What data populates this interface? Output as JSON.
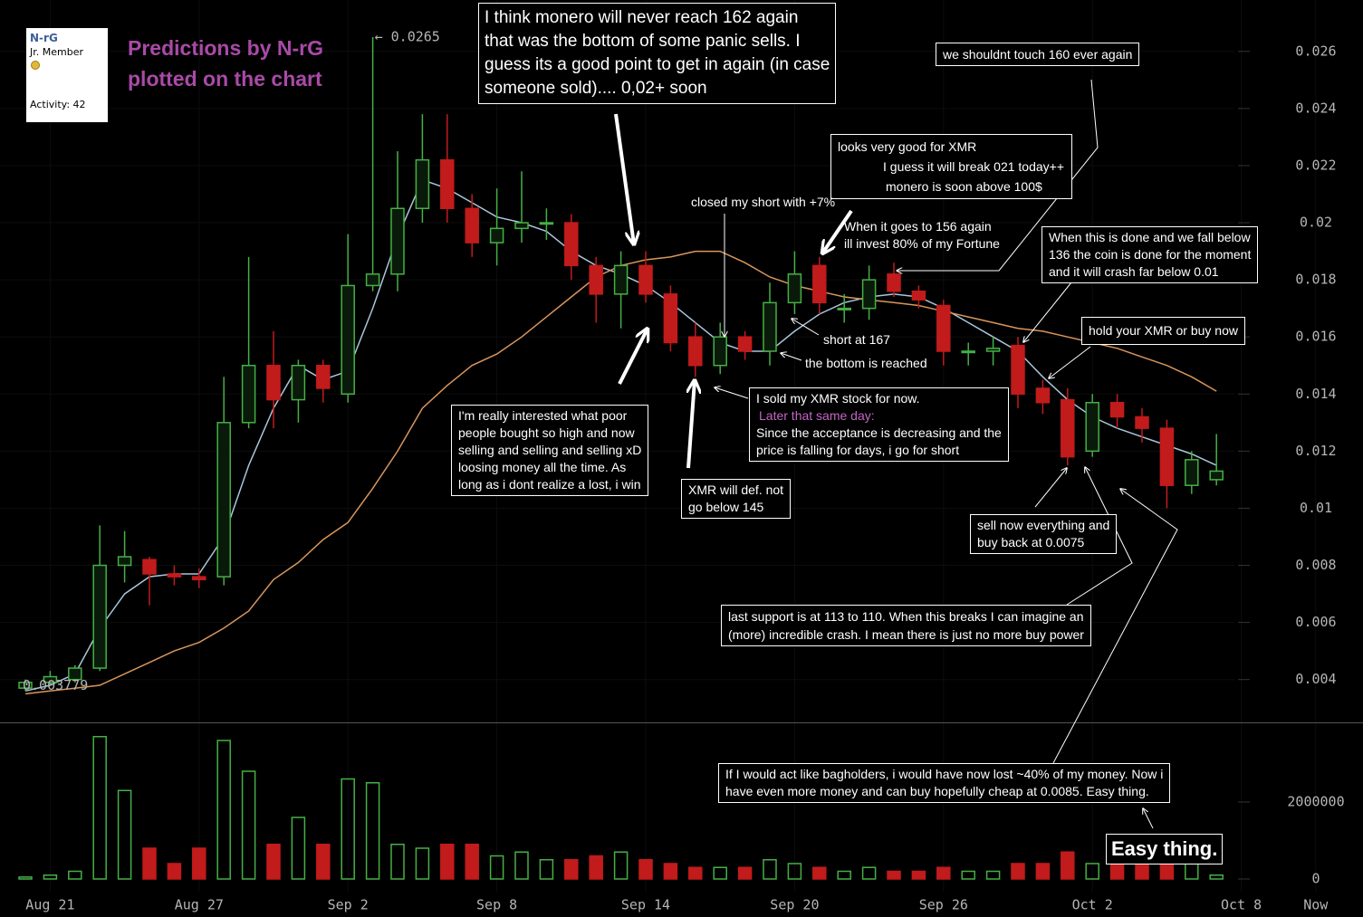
{
  "header": {
    "username": "N-rG",
    "rank": "Jr. Member",
    "activity": "Activity: 42"
  },
  "chart_data": {
    "type": "candlestick",
    "title": "Predictions by N-rG",
    "subtitle": "plotted on the chart",
    "categories": [
      null,
      "Aug 21",
      null,
      null,
      null,
      null,
      null,
      "Aug 27",
      null,
      null,
      null,
      null,
      null,
      "Sep 2",
      null,
      null,
      null,
      null,
      null,
      "Sep 8",
      null,
      null,
      null,
      null,
      null,
      "Sep 14",
      null,
      null,
      null,
      null,
      null,
      "Sep 20",
      null,
      null,
      null,
      null,
      null,
      "Sep 26",
      null,
      null,
      null,
      null,
      null,
      "Oct 2",
      null,
      null,
      null,
      null,
      null,
      "Oct 8",
      null,
      null,
      "Now"
    ],
    "open": [
      0.0037,
      0.0039,
      0.004,
      0.0044,
      0.008,
      0.0082,
      0.0077,
      0.0076,
      0.0076,
      0.013,
      0.015,
      0.0138,
      0.015,
      0.014,
      0.0178,
      0.0182,
      0.0205,
      0.0222,
      0.0205,
      0.0193,
      0.0198,
      0.02,
      0.02,
      0.0185,
      0.0175,
      0.0185,
      0.0175,
      0.016,
      0.015,
      0.016,
      0.0155,
      0.0172,
      0.0185,
      0.017,
      0.017,
      0.0182,
      0.0176,
      0.0171,
      0.0155,
      0.0155,
      0.0157,
      0.0142,
      0.0138,
      0.012,
      0.0137,
      0.0132,
      0.0128,
      0.0108,
      0.011,
      null,
      null,
      null,
      null
    ],
    "high": [
      0.004,
      0.0043,
      0.0045,
      0.0094,
      0.0092,
      0.0083,
      0.008,
      0.0079,
      0.0146,
      0.0188,
      0.0162,
      0.0152,
      0.0152,
      0.0196,
      0.0265,
      0.0225,
      0.0238,
      0.0238,
      0.021,
      0.0212,
      0.0218,
      0.0205,
      0.0203,
      0.0188,
      0.019,
      0.019,
      0.0178,
      0.0165,
      0.0165,
      0.0162,
      0.0179,
      0.019,
      0.0188,
      0.0175,
      0.0185,
      0.0186,
      0.0178,
      0.0173,
      0.0158,
      0.016,
      0.016,
      0.0145,
      0.0142,
      0.014,
      0.014,
      0.0135,
      0.0131,
      0.012,
      0.0126,
      null,
      null,
      null,
      null
    ],
    "low": [
      0.0036,
      0.0038,
      0.0039,
      0.0043,
      0.0074,
      0.0066,
      0.0073,
      0.0072,
      0.0073,
      0.0128,
      0.0128,
      0.013,
      0.0137,
      0.0137,
      0.0176,
      0.0176,
      0.02,
      0.02,
      0.0188,
      0.0185,
      0.0193,
      0.0194,
      0.018,
      0.0165,
      0.0163,
      0.0172,
      0.0155,
      0.0146,
      0.0147,
      0.0152,
      0.015,
      0.0168,
      0.0168,
      0.0165,
      0.0166,
      0.0174,
      0.017,
      0.015,
      0.015,
      0.015,
      0.0135,
      0.0133,
      0.0115,
      0.0118,
      0.0128,
      0.0123,
      0.01,
      0.0105,
      0.0108,
      null,
      null,
      null,
      null
    ],
    "close": [
      0.0039,
      0.0041,
      0.0044,
      0.008,
      0.0083,
      0.0077,
      0.0076,
      0.0075,
      0.013,
      0.015,
      0.0138,
      0.015,
      0.0142,
      0.0178,
      0.0182,
      0.0205,
      0.0222,
      0.0205,
      0.0193,
      0.0198,
      0.02,
      0.02,
      0.0185,
      0.0175,
      0.0185,
      0.0175,
      0.0158,
      0.015,
      0.016,
      0.0155,
      0.0172,
      0.0182,
      0.0172,
      0.017,
      0.018,
      0.0176,
      0.0173,
      0.0155,
      0.0155,
      0.0156,
      0.014,
      0.0137,
      0.0118,
      0.0137,
      0.0132,
      0.0128,
      0.0108,
      0.0117,
      0.0113,
      null,
      null,
      null,
      null
    ],
    "colors": {
      "up": "#45b045",
      "down": "#c21b1b"
    },
    "moving_averages": [
      {
        "color": "#a9c6dc",
        "values": [
          0.0036,
          0.0038,
          0.0042,
          0.0058,
          0.007,
          0.0076,
          0.0077,
          0.0077,
          0.009,
          0.0115,
          0.0135,
          0.015,
          0.0145,
          0.0148,
          0.017,
          0.0195,
          0.0215,
          0.0212,
          0.0207,
          0.0202,
          0.02,
          0.0197,
          0.019,
          0.0185,
          0.0182,
          0.0178,
          0.0172,
          0.0165,
          0.0158,
          0.0155,
          0.0155,
          0.0162,
          0.0168,
          0.0172,
          0.0174,
          0.0175,
          0.0174,
          0.017,
          0.0165,
          0.016,
          0.0155,
          0.0146,
          0.0138,
          0.0132,
          0.0128,
          0.0125,
          0.0122,
          0.0119,
          0.0115,
          null,
          null,
          null,
          null
        ]
      },
      {
        "color": "#d8965c",
        "values": [
          0.0035,
          0.0036,
          0.0037,
          0.0038,
          0.0042,
          0.0046,
          0.005,
          0.0053,
          0.0058,
          0.0064,
          0.0075,
          0.0081,
          0.0089,
          0.0095,
          0.0107,
          0.012,
          0.0135,
          0.0143,
          0.015,
          0.0154,
          0.016,
          0.0167,
          0.0174,
          0.0181,
          0.0185,
          0.0187,
          0.0188,
          0.019,
          0.019,
          0.0186,
          0.0181,
          0.0178,
          0.0176,
          0.0174,
          0.0173,
          0.0172,
          0.0171,
          0.0169,
          0.0167,
          0.0165,
          0.0163,
          0.0162,
          0.016,
          0.0158,
          0.0156,
          0.0153,
          0.015,
          0.0146,
          0.0141,
          null,
          null,
          null,
          null
        ]
      }
    ],
    "ylim": [
      0.0025,
      0.0278
    ],
    "yticks": [
      0.004,
      0.006,
      0.008,
      0.01,
      0.012,
      0.014,
      0.016,
      0.018,
      0.02,
      0.022,
      0.024,
      0.026
    ],
    "price_labels": [
      {
        "value": 0.0265,
        "label": "← 0.0265"
      },
      {
        "value": 0.003779,
        "label": "0.003779"
      }
    ],
    "volume": {
      "values": [
        50000,
        100000,
        200000,
        3700000,
        2300000,
        800000,
        400000,
        800000,
        3600000,
        2800000,
        900000,
        1600000,
        900000,
        2600000,
        2500000,
        900000,
        800000,
        900000,
        900000,
        600000,
        700000,
        500000,
        500000,
        600000,
        700000,
        500000,
        400000,
        300000,
        300000,
        300000,
        500000,
        400000,
        300000,
        200000,
        300000,
        200000,
        200000,
        300000,
        200000,
        200000,
        400000,
        400000,
        700000,
        400000,
        500000,
        600000,
        1100000,
        400000,
        100000,
        null,
        null,
        null,
        null
      ],
      "ylim": [
        0,
        4000000
      ],
      "yticks": [
        0,
        2000000
      ]
    }
  },
  "annotations": [
    {
      "lines": [
        "I think monero will never reach 162 again",
        "that was the bottom of some panic sells. I",
        "guess its a good point to get in again (in case",
        "someone sold).... 0,02+ soon"
      ]
    },
    {
      "lines": [
        "we shouldnt touch 160 ever again"
      ]
    },
    {
      "lines": [
        "looks very good for XMR",
        "I guess it will break 021 today++",
        "monero is soon above 100$"
      ]
    },
    {
      "lines": [
        "closed my short with +7%"
      ]
    },
    {
      "lines": [
        "When it goes to 156 again",
        "ill invest 80% of my Fortune"
      ]
    },
    {
      "lines": [
        "When this is done and we fall below",
        "136 the coin is done for the moment",
        "and it will crash far below 0.01"
      ]
    },
    {
      "lines": [
        "hold your XMR or buy now"
      ]
    },
    {
      "lines": [
        "short at 167"
      ]
    },
    {
      "lines": [
        "the bottom is reached"
      ]
    },
    {
      "lines": [
        "I sold my XMR stock for now.",
        "Later that same day:",
        "Since the acceptance is decreasing and the",
        "price is falling for days, i go for short"
      ]
    },
    {
      "lines": [
        "I'm really interested what poor",
        "people bought so high and now",
        "selling and selling and selling xD",
        "loosing money all the time. As",
        "long as i dont realize a lost, i win"
      ]
    },
    {
      "lines": [
        "XMR will def. not",
        "go below 145"
      ]
    },
    {
      "lines": [
        "sell now everything and",
        "buy back at 0.0075"
      ]
    },
    {
      "lines": [
        "last support is at 113 to 110. When this breaks I can imagine an",
        "(more) incredible crash. I mean there is just no more buy power"
      ]
    },
    {
      "lines": [
        "If I would act like bagholders, i would have now lost ~40% of my money. Now i",
        "have even more money and can buy hopefully cheap at 0.0085. Easy thing."
      ]
    },
    {
      "lines": [
        "Easy thing."
      ]
    }
  ]
}
